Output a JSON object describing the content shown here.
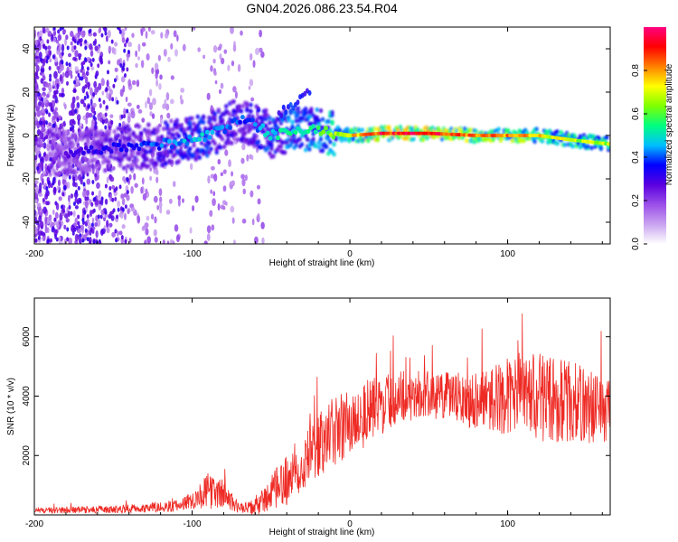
{
  "title": "GN04.2026.086.23.54.R04",
  "chart_data": [
    {
      "type": "heatmap",
      "xlabel": "Height of straight line (km)",
      "ylabel": "Frequency (Hz)",
      "xlim": [
        -200,
        165
      ],
      "ylim": [
        -50,
        50
      ],
      "xticks": [
        "-200",
        "-100",
        "0",
        "100"
      ],
      "xtick_values": [
        -200,
        -100,
        0,
        100
      ],
      "yticks": [
        "-40",
        "-20",
        "0",
        "20",
        "40"
      ],
      "ytick_values": [
        -40,
        -20,
        0,
        20,
        40
      ],
      "colorbar": {
        "label": "Normalized spectral amplitude",
        "range": [
          0,
          1
        ],
        "ticks": [
          "0.0",
          "0.2",
          "0.4",
          "0.6",
          "0.8"
        ],
        "tick_values": [
          0.0,
          0.2,
          0.4,
          0.6,
          0.8
        ],
        "colormap": [
          "#ffffff",
          "#c9a3f0",
          "#9b4fe8",
          "#5a00e0",
          "#0000ff",
          "#00bfff",
          "#00ff80",
          "#7fff00",
          "#ffff00",
          "#ff8000",
          "#ff0000",
          "#ff0080"
        ]
      },
      "ridge": {
        "x": [
          -170,
          -150,
          -130,
          -110,
          -95,
          -80,
          -70,
          -60,
          -50,
          -40,
          -30,
          -20,
          -10,
          0,
          20,
          50,
          80,
          100,
          120,
          140,
          165
        ],
        "freq": [
          -8,
          -6,
          -5,
          -3,
          -1,
          3,
          8,
          5,
          0,
          2,
          3,
          2,
          1,
          0,
          1,
          1,
          0,
          0,
          0,
          -2,
          -4
        ],
        "amplitude": [
          0.3,
          0.35,
          0.4,
          0.45,
          0.5,
          0.45,
          0.4,
          0.45,
          0.5,
          0.55,
          0.55,
          0.6,
          0.65,
          0.8,
          0.95,
          0.95,
          0.85,
          0.85,
          0.8,
          0.7,
          0.7
        ]
      }
    },
    {
      "type": "line",
      "xlabel": "Height of straight line (km)",
      "ylabel": "SNR (10 * v/v)",
      "xlim": [
        -200,
        165
      ],
      "ylim": [
        0,
        7300
      ],
      "xticks": [
        "-200",
        "-100",
        "0",
        "100"
      ],
      "xtick_values": [
        -200,
        -100,
        0,
        100
      ],
      "yticks": [
        "2000",
        "4000",
        "6000"
      ],
      "ytick_values": [
        2000,
        4000,
        6000
      ],
      "color": "#ee2a24",
      "envelope": {
        "x": [
          -200,
          -150,
          -110,
          -100,
          -90,
          -80,
          -70,
          -60,
          -50,
          -40,
          -30,
          -20,
          -10,
          0,
          10,
          20,
          30,
          50,
          70,
          90,
          100,
          110,
          120,
          130,
          140,
          150,
          165
        ],
        "mean": [
          150,
          180,
          300,
          500,
          800,
          700,
          200,
          250,
          700,
          1200,
          1800,
          2300,
          2800,
          3100,
          3400,
          3700,
          4000,
          4050,
          3900,
          3900,
          4000,
          4000,
          4000,
          3900,
          3800,
          3700,
          3500
        ],
        "spread": [
          100,
          130,
          200,
          300,
          600,
          500,
          150,
          300,
          600,
          900,
          1000,
          1100,
          1200,
          1200,
          1200,
          1000,
          900,
          800,
          900,
          1100,
          1300,
          1400,
          1500,
          1500,
          1400,
          1300,
          1200
        ]
      }
    }
  ]
}
